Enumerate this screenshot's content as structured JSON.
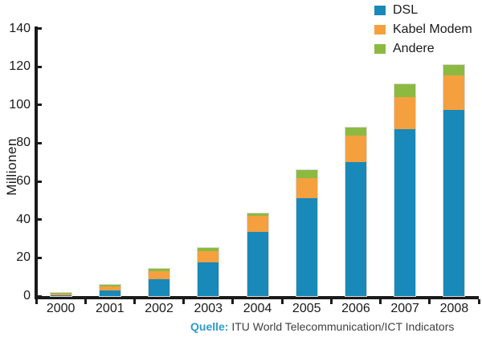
{
  "chart_data": {
    "type": "bar",
    "stacked": true,
    "categories": [
      "2000",
      "2001",
      "2002",
      "2003",
      "2004",
      "2005",
      "2006",
      "2007",
      "2008"
    ],
    "series": [
      {
        "name": "DSL",
        "color": "#1889b8",
        "values": [
          0.3,
          3.0,
          9.0,
          17.5,
          33.5,
          51.0,
          70.0,
          87.5,
          97.5
        ]
      },
      {
        "name": "Kabel Modem",
        "color": "#f5a03e",
        "values": [
          1.0,
          2.2,
          4.0,
          6.0,
          8.5,
          10.5,
          14.0,
          16.5,
          18.0
        ]
      },
      {
        "name": "Andere",
        "color": "#8cba41",
        "values": [
          0.2,
          0.6,
          1.4,
          1.5,
          1.4,
          4.5,
          4.3,
          7.0,
          5.5
        ]
      }
    ],
    "title": "",
    "xlabel": "",
    "ylabel": "Millionen",
    "ylim": [
      0,
      140
    ],
    "yticks": [
      0,
      20,
      40,
      60,
      80,
      100,
      120,
      140
    ],
    "grid": false,
    "legend_position": "top-right"
  },
  "caption": {
    "prefix": "Quelle:",
    "text": " ITU World Telecommunication/ICT Indicators"
  },
  "colors": {
    "axis": "#1a1a1a",
    "tick_label": "#1a1a1a",
    "caption_prefix": "#2e9bc9",
    "caption_text": "#3f3f3f",
    "background": "#ffffff"
  }
}
